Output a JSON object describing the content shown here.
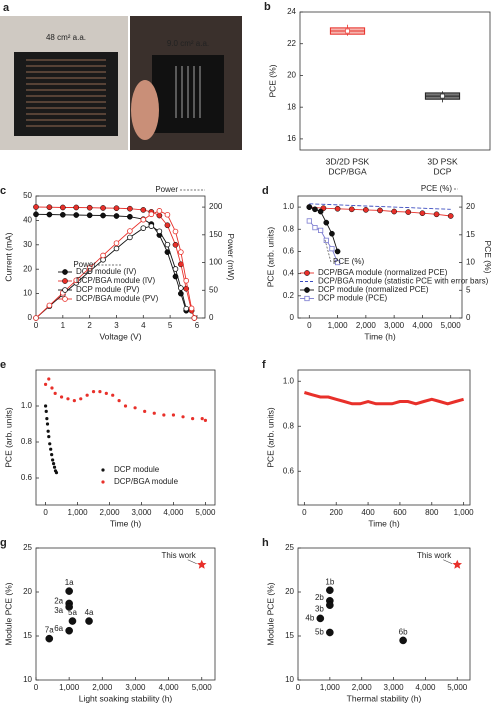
{
  "panel_a": {
    "panel": "a",
    "labels": [
      "48 cm² a.a.",
      "9.0 cm² a.a."
    ]
  },
  "chart_data": [
    {
      "type": "box",
      "panel": "b",
      "ylabel": "PCE (%)",
      "categories": [
        [
          "3D/2D PSK",
          "DCP/BGA"
        ],
        [
          "3D PSK",
          "DCP"
        ]
      ],
      "ylim": [
        15.3,
        24
      ],
      "yticks": [
        16,
        18,
        20,
        22,
        24
      ],
      "boxes": [
        {
          "whislo": 22.5,
          "q1": 22.6,
          "med": 22.8,
          "q3": 23.0,
          "whishi": 23.2,
          "mean": 22.8,
          "color": "#e8302a",
          "fill": "#f5b3ad"
        },
        {
          "whislo": 18.3,
          "q1": 18.5,
          "med": 18.7,
          "q3": 18.9,
          "whishi": 19.0,
          "mean": 18.7,
          "color": "#222222",
          "fill": "#777777"
        }
      ]
    },
    {
      "type": "line",
      "panel": "c",
      "xlabel": "Voltage (V)",
      "ylabel": "Current (mA)",
      "y2label": "Power (mW)",
      "xlim": [
        0,
        6.3
      ],
      "xticks": [
        0,
        1,
        2,
        3,
        4,
        5,
        6
      ],
      "ylim": [
        0,
        50
      ],
      "yticks": [
        0,
        10,
        20,
        30,
        40,
        50
      ],
      "y2lim": [
        0,
        220
      ],
      "y2ticks": [
        0,
        50,
        100,
        150,
        200
      ],
      "legend": "lower left",
      "annotations": [
        "Power",
        "Power"
      ],
      "x": [
        0,
        0.5,
        1,
        1.5,
        2,
        2.5,
        3,
        3.5,
        4,
        4.3,
        4.6,
        4.9,
        5.2,
        5.4,
        5.6,
        5.8,
        5.9
      ],
      "series": [
        {
          "name": "DCP module (IV)",
          "color": "#111111",
          "marker": "filled-circle",
          "values": [
            42.5,
            42.4,
            42.3,
            42.2,
            42.1,
            42,
            41.8,
            41.5,
            40.5,
            38.5,
            34,
            27,
            17,
            10,
            3,
            null,
            null
          ]
        },
        {
          "name": "DCP/BGA module (IV)",
          "color": "#e8302a",
          "marker": "filled-circle",
          "values": [
            45.5,
            45.4,
            45.3,
            45.3,
            45.2,
            45.1,
            45,
            44.8,
            44.3,
            43.5,
            42,
            38,
            30,
            22,
            12,
            3,
            0
          ]
        },
        {
          "name": "DCP module (PV)",
          "color": "#111111",
          "marker": "open-circle",
          "axis": "y2",
          "values": [
            0,
            21.2,
            42.3,
            63.3,
            84.2,
            105,
            125.4,
            145.3,
            162,
            165.6,
            156.4,
            132.3,
            88.4,
            54,
            16.8,
            null,
            null
          ]
        },
        {
          "name": "DCP/BGA module (PV)",
          "color": "#e8302a",
          "marker": "open-circle",
          "axis": "y2",
          "values": [
            0,
            22.7,
            45.3,
            68,
            90.4,
            112.8,
            135,
            156.8,
            177.2,
            187,
            193.2,
            186.2,
            156,
            118.8,
            67.2,
            17.4,
            0
          ]
        }
      ]
    },
    {
      "type": "line",
      "panel": "d",
      "xlabel": "Time (h)",
      "ylabel": "PCE (arb. units)",
      "y2label": "PCE (%)",
      "ylabel_color": "#e8302a",
      "y2label_color": "#3b4cc0",
      "xlim": [
        -400,
        5400
      ],
      "xticks": [
        0,
        {
          "value": 1000,
          "label": "1,000"
        },
        {
          "value": 2000,
          "label": "2,000"
        },
        {
          "value": 3000,
          "label": "3,000"
        },
        {
          "value": 4000,
          "label": "4,000"
        },
        {
          "value": 5000,
          "label": "5,000"
        }
      ],
      "ylim": [
        0,
        1.1
      ],
      "yticks": [
        0,
        0.2,
        0.4,
        0.6,
        0.8,
        {
          "value": 1.0,
          "label": "1.0"
        }
      ],
      "y2lim": [
        0,
        22
      ],
      "y2ticks": [
        0,
        5,
        10,
        15,
        20
      ],
      "legend": "lower left",
      "annotations": [
        "PCE (%)",
        "PCE (%)"
      ],
      "series": [
        {
          "name": "DCP/BGA module (normalized PCE)",
          "color": "#e8302a",
          "marker": "filled-circle",
          "x": [
            0,
            500,
            1000,
            1500,
            2000,
            2500,
            3000,
            3500,
            4000,
            4500,
            5000
          ],
          "values": [
            1.0,
            0.99,
            0.985,
            0.98,
            0.975,
            0.97,
            0.96,
            0.955,
            0.945,
            0.935,
            0.92
          ]
        },
        {
          "name": "DCP/BGA module (statistic PCE with error bars)",
          "color": "#3b4cc0",
          "marker": "none",
          "dashed": true,
          "axis": "y2",
          "x": [
            0,
            500,
            1000,
            1500,
            2000,
            2500,
            3000,
            3500,
            4000,
            4500,
            5000
          ],
          "values": [
            20.6,
            20.5,
            20.4,
            20.3,
            20.2,
            20.1,
            20.0,
            19.9,
            19.8,
            19.7,
            19.6
          ]
        },
        {
          "name": "DCP module (normalized PCE)",
          "color": "#111111",
          "marker": "filled-circle",
          "x": [
            0,
            200,
            400,
            600,
            800,
            1000
          ],
          "values": [
            1.0,
            0.98,
            0.96,
            0.86,
            0.76,
            0.6
          ]
        },
        {
          "name": "DCP module (PCE)",
          "color": "#7b7bd0",
          "marker": "open-square",
          "axis": "y2",
          "x": [
            0,
            200,
            400,
            600,
            800,
            1000
          ],
          "values": [
            17.5,
            16.3,
            15.8,
            14,
            12.5,
            10
          ]
        }
      ]
    },
    {
      "type": "scatter",
      "panel": "e",
      "xlabel": "Time (h)",
      "ylabel": "PCE (arb. units)",
      "xlim": [
        -300,
        5300
      ],
      "xticks": [
        0,
        {
          "value": 1000,
          "label": "1,000"
        },
        {
          "value": 2000,
          "label": "2,000"
        },
        {
          "value": 3000,
          "label": "3,000"
        },
        {
          "value": 4000,
          "label": "4,000"
        },
        {
          "value": 5000,
          "label": "5,000"
        }
      ],
      "ylim": [
        0.45,
        1.2
      ],
      "yticks": [
        0.6,
        0.8,
        {
          "value": 1.0,
          "label": "1.0"
        }
      ],
      "legend": "lower right",
      "series": [
        {
          "name": "DCP module",
          "color": "#111111",
          "marker": "dot",
          "x": [
            0,
            20,
            40,
            60,
            80,
            100,
            130,
            160,
            190,
            220,
            250,
            280,
            310,
            340
          ],
          "values": [
            1.0,
            0.97,
            0.93,
            0.9,
            0.86,
            0.83,
            0.79,
            0.76,
            0.73,
            0.7,
            0.68,
            0.66,
            0.64,
            0.63
          ]
        },
        {
          "name": "DCP/BGA module",
          "color": "#e8302a",
          "marker": "dot",
          "x": [
            0,
            100,
            200,
            300,
            500,
            700,
            900,
            1100,
            1300,
            1500,
            1700,
            1900,
            2100,
            2300,
            2500,
            2800,
            3100,
            3400,
            3700,
            4000,
            4300,
            4600,
            4900,
            5000
          ],
          "values": [
            1.12,
            1.15,
            1.1,
            1.07,
            1.05,
            1.04,
            1.03,
            1.04,
            1.06,
            1.08,
            1.08,
            1.07,
            1.06,
            1.03,
            1.0,
            0.99,
            0.97,
            0.96,
            0.95,
            0.95,
            0.94,
            0.93,
            0.93,
            0.92
          ]
        }
      ]
    },
    {
      "type": "line",
      "panel": "f",
      "xlabel": "Time (h)",
      "ylabel": "PCE (arb. units)",
      "xlim": [
        -40,
        1040
      ],
      "xticks": [
        0,
        200,
        400,
        600,
        800,
        {
          "value": 1000,
          "label": "1,000"
        }
      ],
      "ylim": [
        0.45,
        1.05
      ],
      "yticks": [
        0.6,
        0.8,
        {
          "value": 1.0,
          "label": "1.0"
        }
      ],
      "series": [
        {
          "color": "#e8302a",
          "marker": "dot",
          "width": 3,
          "x": [
            0,
            50,
            100,
            150,
            200,
            250,
            300,
            350,
            400,
            450,
            500,
            550,
            600,
            650,
            700,
            750,
            800,
            850,
            900,
            950,
            1000
          ],
          "values": [
            0.95,
            0.94,
            0.93,
            0.93,
            0.92,
            0.91,
            0.9,
            0.9,
            0.91,
            0.9,
            0.9,
            0.9,
            0.91,
            0.91,
            0.9,
            0.91,
            0.92,
            0.91,
            0.9,
            0.91,
            0.92
          ]
        }
      ]
    },
    {
      "type": "scatter",
      "panel": "g",
      "xlabel": "Light soaking stability (h)",
      "ylabel": "Module PCE (%)",
      "xlim": [
        0,
        5400
      ],
      "xticks": [
        0,
        {
          "value": 1000,
          "label": "1,000"
        },
        {
          "value": 2000,
          "label": "2,000"
        },
        {
          "value": 3000,
          "label": "3,000"
        },
        {
          "value": 4000,
          "label": "4,000"
        },
        {
          "value": 5000,
          "label": "5,000"
        }
      ],
      "ylim": [
        10,
        25
      ],
      "yticks": [
        10,
        15,
        20,
        25
      ],
      "labels": [
        "1a",
        "2a",
        "3a",
        "4a",
        "5a",
        "6a",
        "7a",
        "This work"
      ],
      "x": [
        1000,
        1000,
        1000,
        1600,
        1100,
        1000,
        400,
        5000
      ],
      "values": [
        20.1,
        18.7,
        18.3,
        16.7,
        16.7,
        15.6,
        14.7,
        23.1
      ],
      "colors": [
        "#111111",
        "#111111",
        "#111111",
        "#111111",
        "#111111",
        "#111111",
        "#111111",
        "#e8302a"
      ],
      "markers": [
        "ball",
        "ball",
        "ball",
        "ball",
        "ball",
        "ball",
        "ball",
        "star"
      ]
    },
    {
      "type": "scatter",
      "panel": "h",
      "xlabel": "Thermal stability (h)",
      "ylabel": "Module PCE (%)",
      "xlim": [
        0,
        5400
      ],
      "xticks": [
        0,
        {
          "value": 1000,
          "label": "1,000"
        },
        {
          "value": 2000,
          "label": "2,000"
        },
        {
          "value": 3000,
          "label": "3,000"
        },
        {
          "value": 4000,
          "label": "4,000"
        },
        {
          "value": 5000,
          "label": "5,000"
        }
      ],
      "ylim": [
        10,
        25
      ],
      "yticks": [
        10,
        15,
        20,
        25
      ],
      "labels": [
        "1b",
        "2b",
        "3b",
        "4b",
        "5b",
        "6b",
        "This work"
      ],
      "x": [
        1000,
        1000,
        1000,
        700,
        1000,
        3300,
        5000
      ],
      "values": [
        20.2,
        19,
        18.5,
        17,
        15.4,
        14.5,
        23.1
      ],
      "colors": [
        "#111111",
        "#111111",
        "#111111",
        "#111111",
        "#111111",
        "#111111",
        "#e8302a"
      ],
      "markers": [
        "ball",
        "ball",
        "ball",
        "ball",
        "ball",
        "ball",
        "star"
      ]
    }
  ]
}
